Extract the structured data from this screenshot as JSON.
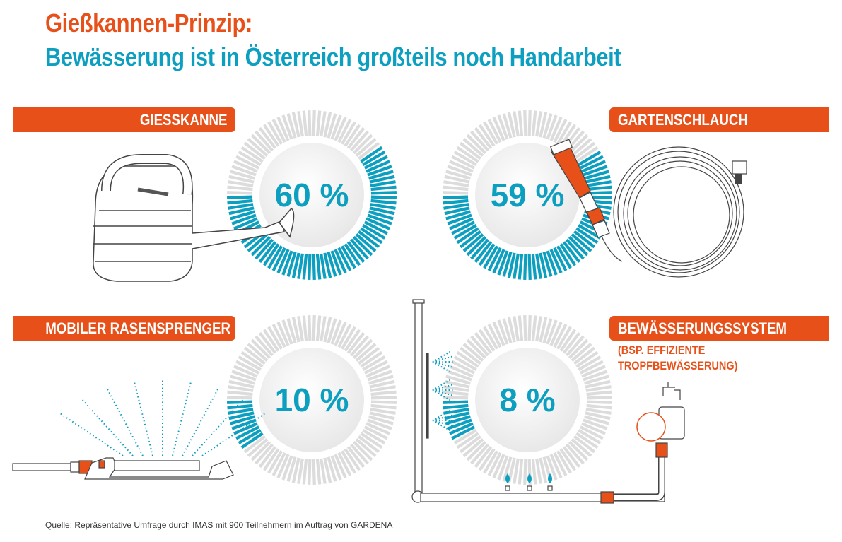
{
  "title": "Gießkannen-Prinzip:",
  "subtitle": "Bewässerung ist in Österreich großteils noch Handarbeit",
  "chart_data": {
    "type": "radial-gauge",
    "unit": "%",
    "categories": [
      "GIESSKANNE",
      "GARTENSCHLAUCH",
      "MOBILER RASENSPRENGER",
      "BEWÄSSERUNGSSYSTEM"
    ],
    "values": [
      60,
      59,
      10,
      8
    ],
    "labels": [
      "60 %",
      "59 %",
      "10 %",
      "8 %"
    ],
    "range": [
      0,
      100
    ]
  },
  "gauges": [
    {
      "label": "GIESSKANNE",
      "value_label": "60 %"
    },
    {
      "label": "GARTENSCHLAUCH",
      "value_label": "59 %"
    },
    {
      "label": "MOBILER RASENSPRENGER",
      "value_label": "10 %"
    },
    {
      "label": "BEWÄSSERUNGSSYSTEM",
      "value_label": "8 %",
      "note_line1": "(BSP. EFFIZIENTE",
      "note_line2": "TROPFBEWÄSSERUNG)"
    }
  ],
  "source": "Quelle: Repräsentative Umfrage durch IMAS mit 900 Teilnehmern im Auftrag von GARDENA",
  "colors": {
    "orange": "#e8501a",
    "teal": "#0c9fc0",
    "tick_gray": "#dcdcdc",
    "disc": "#efefef"
  }
}
